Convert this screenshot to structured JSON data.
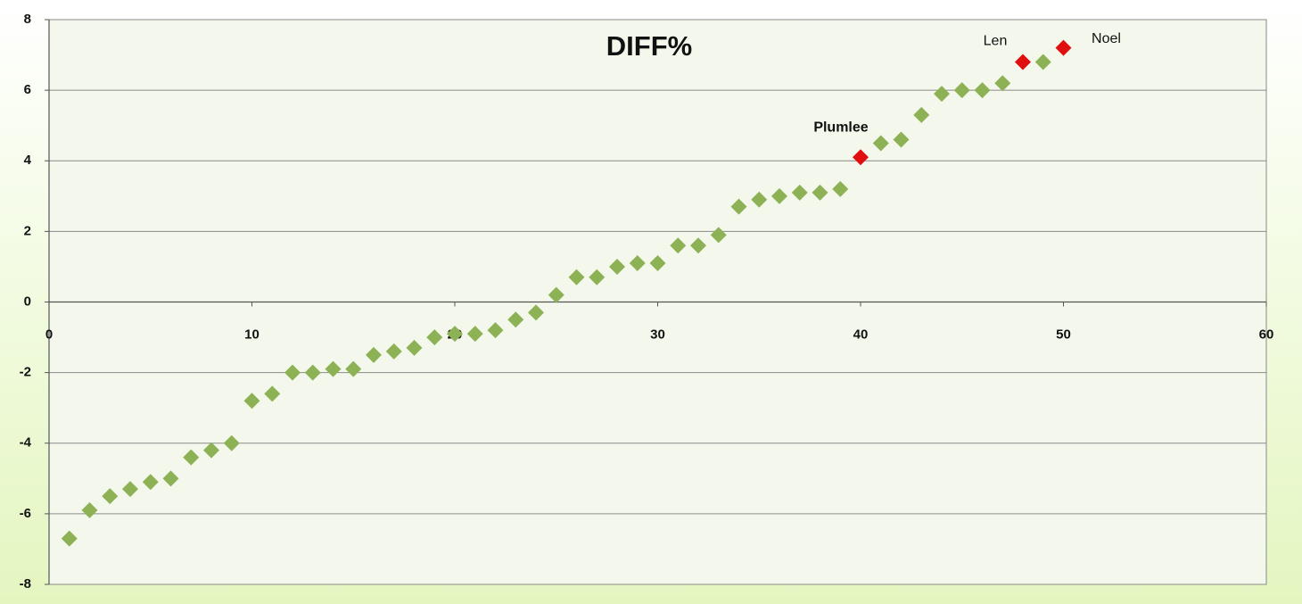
{
  "chart_data": {
    "type": "scatter",
    "title": "DIFF%",
    "xlim": [
      0,
      60
    ],
    "xticks": [
      0,
      10,
      20,
      30,
      40,
      50,
      60
    ],
    "ylim": [
      -8,
      8
    ],
    "yticks": [
      -8,
      -6,
      -4,
      -2,
      0,
      2,
      4,
      6,
      8
    ],
    "grid": true,
    "series": [
      {
        "color": "#8db255",
        "x": [
          1,
          2,
          3,
          4,
          5,
          6,
          7,
          8,
          9,
          10,
          11,
          12,
          13,
          14,
          15,
          16,
          17,
          18,
          19,
          20,
          21,
          22,
          23,
          24,
          25,
          26,
          27,
          28,
          29,
          30,
          31,
          32,
          33,
          34,
          35,
          36,
          37,
          38,
          39,
          41,
          42,
          43,
          44,
          45,
          46,
          47,
          49
        ],
        "values": [
          -6.7,
          -5.9,
          -5.5,
          -5.3,
          -5.1,
          -5.0,
          -4.4,
          -4.2,
          -4.0,
          -2.8,
          -2.6,
          -2.0,
          -2.0,
          -1.9,
          -1.9,
          -1.5,
          -1.4,
          -1.3,
          -1.0,
          -0.9,
          -0.9,
          -0.8,
          -0.5,
          -0.3,
          0.2,
          0.7,
          0.7,
          1.0,
          1.1,
          1.1,
          1.6,
          1.6,
          1.9,
          2.7,
          2.9,
          3.0,
          3.1,
          3.1,
          3.2,
          4.5,
          4.6,
          5.3,
          5.9,
          6.0,
          6.0,
          6.2,
          6.8
        ]
      },
      {
        "color": "#e01010",
        "x": [
          40,
          48,
          50
        ],
        "values": [
          4.1,
          6.8,
          7.2
        ],
        "point_labels": [
          "Plumlee",
          "Len",
          "Noel"
        ]
      }
    ]
  }
}
